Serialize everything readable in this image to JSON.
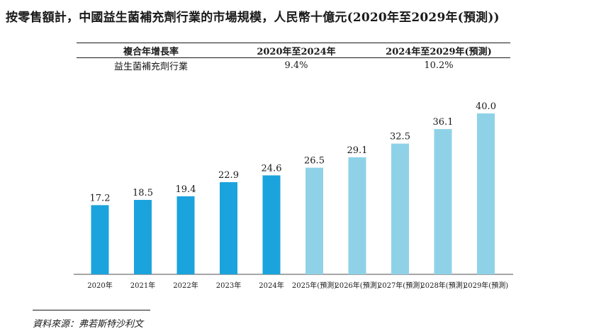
{
  "title": "按零售額計，中國益生菌補充劑行業的市場規模，人民幣十億元(2020年至2029年(預測))",
  "cagr_table": {
    "header": [
      "複合年增長率",
      "2020年至2024年",
      "2024年至2029年(預測)"
    ],
    "rows": [
      [
        "益生菌補充劑行業",
        "9.4%",
        "10.2%"
      ]
    ]
  },
  "chart_data": {
    "type": "bar",
    "categories": [
      "2020年",
      "2021年",
      "2022年",
      "2023年",
      "2024年",
      "2025年(預測)",
      "2026年(預測)",
      "2027年(預測)",
      "2028年(預測)",
      "2029年(預測)"
    ],
    "values": [
      17.2,
      18.5,
      19.4,
      22.9,
      24.6,
      26.5,
      29.1,
      32.5,
      36.1,
      40.0
    ],
    "value_labels": [
      "17.2",
      "18.5",
      "19.4",
      "22.9",
      "24.6",
      "26.5",
      "29.1",
      "32.5",
      "36.1",
      "40.0"
    ],
    "ylim": [
      0,
      40
    ],
    "colors": {
      "historical": "#1ba3dd",
      "forecast": "#8fd2e8"
    },
    "forecast_from_index": 5,
    "grid": false,
    "legend": "none"
  },
  "source": "資料來源：弗若斯特沙利文"
}
